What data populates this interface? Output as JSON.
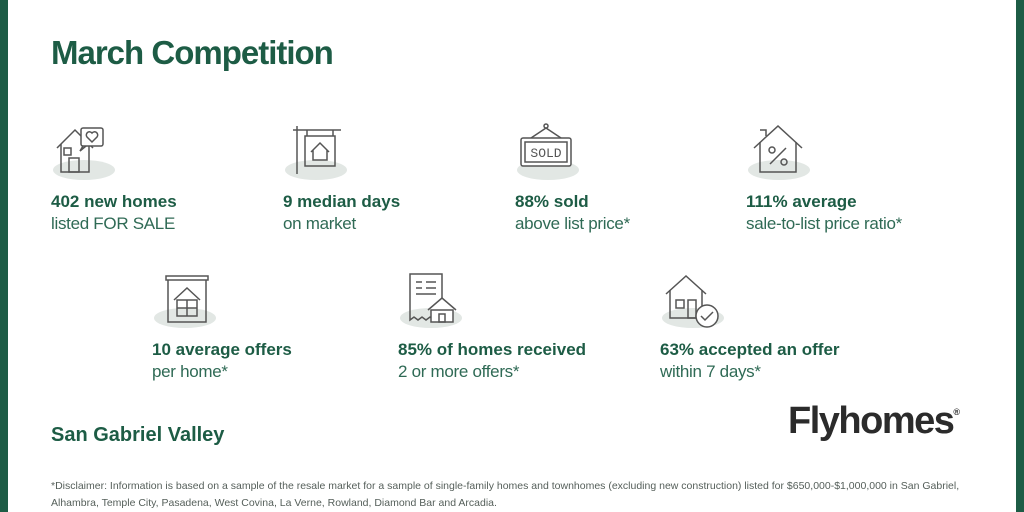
{
  "title": "March Competition",
  "stats": [
    {
      "icon": "house-heart-icon",
      "line1": "402  new homes",
      "line2": "listed FOR SALE"
    },
    {
      "icon": "house-sign-icon",
      "line1": "9 median days",
      "line2": "on market"
    },
    {
      "icon": "sold-sign-icon",
      "line1": "88% sold",
      "line2": "above list price*"
    },
    {
      "icon": "house-percent-icon",
      "line1": "111% average",
      "line2": "sale-to-list price ratio*"
    },
    {
      "icon": "document-house-icon",
      "line1": "10  average offers",
      "line2": "per home*"
    },
    {
      "icon": "receipt-house-icon",
      "line1": "85% of homes received",
      "line2": "2 or more offers*"
    },
    {
      "icon": "house-check-icon",
      "line1": "63% accepted an offer",
      "line2": "within 7 days*"
    }
  ],
  "sold_sign_text": "SOLD",
  "region": "San Gabriel Valley",
  "brand": {
    "name": "Flyhomes",
    "mark": "®"
  },
  "disclaimer": "*Disclaimer: Information is based on a sample of the resale market for a sample of single-family homes and townhomes (excluding new construction) listed for $650,000-$1,000,000 in San Gabriel, Alhambra, Temple City, Pasadena, West Covina, La Verne, Rowland, Diamond Bar and Arcadia.",
  "colors": {
    "brand_green": "#1d5c45",
    "icon_bg": "#e2e7e4",
    "icon_stroke": "#555555"
  }
}
